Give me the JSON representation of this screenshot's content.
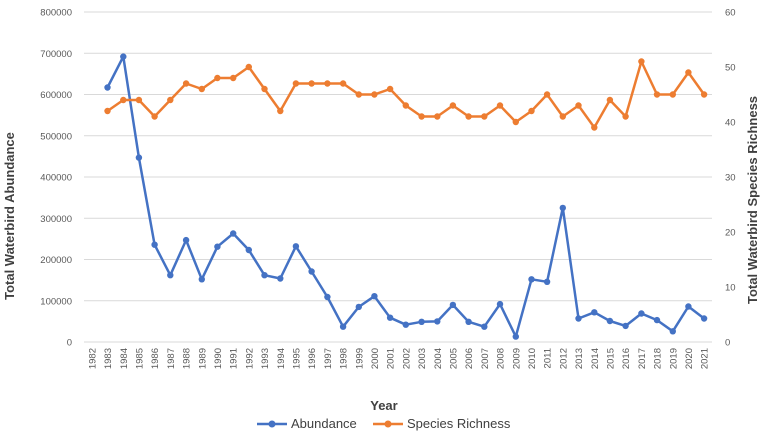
{
  "chart_data": {
    "type": "line",
    "xlabel": "Year",
    "ylabel": "Total Waterbird Abundance",
    "y2label": "Total Waterbird Species Richness",
    "ylim": [
      0,
      800000
    ],
    "y2lim": [
      0,
      60
    ],
    "yticks": [
      "0",
      "100000",
      "200000",
      "300000",
      "400000",
      "500000",
      "600000",
      "700000",
      "800000"
    ],
    "y2ticks": [
      "0",
      "10",
      "20",
      "30",
      "40",
      "50",
      "60"
    ],
    "categories": [
      "1982",
      "1983",
      "1984",
      "1985",
      "1986",
      "1987",
      "1988",
      "1989",
      "1990",
      "1991",
      "1992",
      "1993",
      "1994",
      "1995",
      "1996",
      "1997",
      "1998",
      "1999",
      "2000",
      "2001",
      "2002",
      "2003",
      "2004",
      "2005",
      "2006",
      "2007",
      "2008",
      "2009",
      "2010",
      "2011",
      "2012",
      "2013",
      "2014",
      "2015",
      "2016",
      "2017",
      "2018",
      "2019",
      "2020",
      "2021"
    ],
    "grid": true,
    "legend_position": "bottom",
    "series": [
      {
        "name": "Abundance",
        "axis": "left",
        "color": "#4472C4",
        "values": [
          null,
          617000,
          692000,
          447000,
          236000,
          162000,
          247000,
          152000,
          231000,
          263000,
          223000,
          162000,
          154000,
          232000,
          171000,
          109000,
          37000,
          85000,
          111000,
          59000,
          42000,
          49000,
          50000,
          90000,
          49000,
          37000,
          92000,
          13000,
          152000,
          146000,
          325000,
          57000,
          72000,
          51000,
          39000,
          69000,
          53000,
          26000,
          86000,
          57000
        ]
      },
      {
        "name": "Species Richness",
        "axis": "right",
        "color": "#ED7D31",
        "values": [
          null,
          42,
          44,
          44,
          41,
          44,
          47,
          46,
          48,
          48,
          50,
          46,
          42,
          47,
          47,
          47,
          47,
          45,
          45,
          46,
          43,
          41,
          41,
          43,
          41,
          41,
          43,
          40,
          42,
          45,
          41,
          43,
          39,
          44,
          41,
          51,
          45,
          45,
          49,
          45
        ]
      }
    ]
  }
}
